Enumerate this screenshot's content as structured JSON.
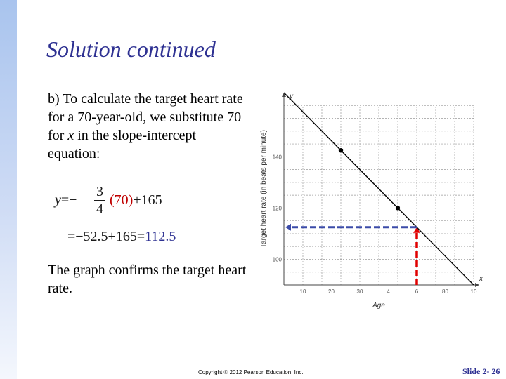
{
  "slide": {
    "title": "Solution continued",
    "intro": {
      "part1": "b) To calculate the target heart rate for a 70-year-old, we substitute 70 for ",
      "var": "x",
      "part2": " in the slope-intercept equation:"
    },
    "equation": {
      "lhs": "y",
      "eq_sign": "=",
      "minus": "−",
      "frac_num": "3",
      "frac_den": "4",
      "substituted": "(70)",
      "plus_term": "+165",
      "line2_prefix": "=−52.5+165=",
      "result": "112.5"
    },
    "closing": "The graph confirms the target heart rate.",
    "footer": "Copyright © 2012 Pearson Education, Inc.",
    "slide_number": "Slide 2- 26"
  },
  "chart_data": {
    "type": "line",
    "xlabel": "Age",
    "ylabel": "Target heart rate (in beats per minute)",
    "x_axis_letter": "x",
    "y_axis_letter": "y",
    "x_ticks": [
      "10",
      "20",
      "30",
      "4",
      "6",
      "80",
      "10"
    ],
    "y_ticks": [
      "140",
      "120",
      "100"
    ],
    "xlim": [
      0,
      100
    ],
    "ylim": [
      90,
      165
    ],
    "grid": true,
    "line": {
      "x": [
        0,
        100
      ],
      "y": [
        165,
        90
      ]
    },
    "points": [
      {
        "x": 30,
        "y": 142.5
      },
      {
        "x": 60,
        "y": 120
      }
    ],
    "highlight": {
      "x": 70,
      "y": 112.5
    },
    "colors": {
      "line": "#000000",
      "guide_vertical": "#e00000",
      "guide_horizontal": "#3b4ba8"
    }
  }
}
